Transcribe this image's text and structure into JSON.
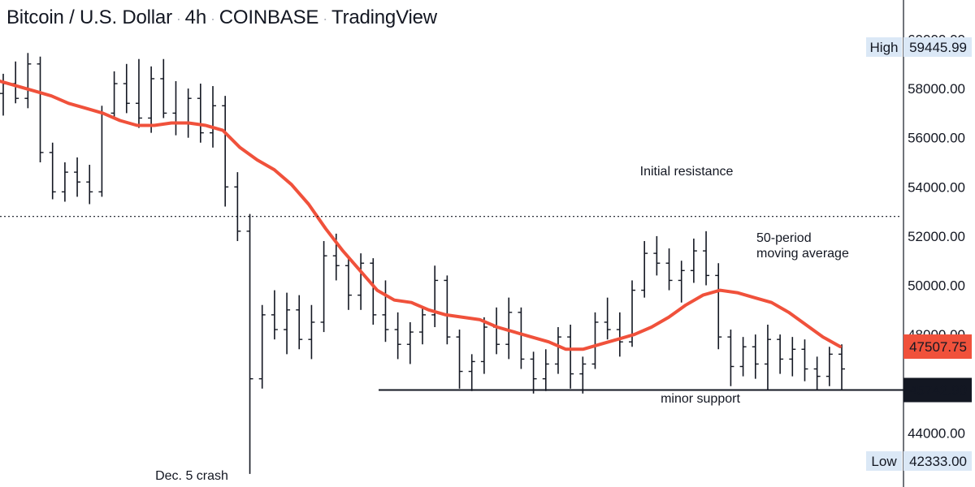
{
  "header": {
    "symbol": "Bitcoin / U.S. Dollar",
    "interval": "4h",
    "exchange": "COINBASE",
    "platform": "TradingView"
  },
  "chart_data": {
    "type": "ohlc-bar",
    "title": "Bitcoin / U.S. Dollar · 4h · COINBASE · TradingView",
    "y_axis": {
      "position": "right",
      "ticks": [
        60000,
        58000,
        56000,
        54000,
        52000,
        50000,
        48000,
        46000,
        44000
      ],
      "tick_labels": [
        "60000.00",
        "58000.00",
        "56000.00",
        "54000.00",
        "52000.00",
        "50000.00",
        "48000.00",
        "46000.00",
        "44000.00"
      ],
      "range": [
        41800,
        61600
      ]
    },
    "price_labels": {
      "high": {
        "label": "High",
        "value": "59445.99"
      },
      "low": {
        "label": "Low",
        "value": "42333.00"
      },
      "moving_average": {
        "value": "47507.75",
        "color": "#f0513b"
      },
      "last_price": {
        "value": "45742.90",
        "color": "#131722"
      }
    },
    "levels": [
      {
        "name": "Initial resistance",
        "price": 52800,
        "style": "dotted"
      },
      {
        "name": "minor support",
        "price": 45742.9,
        "style": "solid"
      }
    ],
    "annotations": {
      "resistance": "Initial resistance",
      "support": "minor support",
      "ma_line1": "50-period",
      "ma_line2": "moving average",
      "crash": "Dec. 5 crash"
    },
    "moving_average_series": {
      "name": "50-period moving average",
      "color": "#f0513b",
      "values": [
        58300,
        58100,
        57900,
        57700,
        57400,
        57200,
        57000,
        56700,
        56500,
        56500,
        56600,
        56600,
        56500,
        56300,
        55600,
        55100,
        54700,
        54100,
        53300,
        52300,
        51400,
        50600,
        49800,
        49400,
        49300,
        49000,
        48800,
        48700,
        48600,
        48300,
        48100,
        47900,
        47700,
        47400,
        47400,
        47600,
        47800,
        48000,
        48300,
        48700,
        49200,
        49600,
        49800,
        49700,
        49500,
        49300,
        48900,
        48400,
        47900,
        47507.75
      ]
    },
    "ohlc_series": [
      [
        57800,
        58600,
        56900,
        58200
      ],
      [
        58200,
        59100,
        57400,
        57600
      ],
      [
        57600,
        59446,
        57200,
        59000
      ],
      [
        59000,
        59300,
        55000,
        55400
      ],
      [
        55400,
        55800,
        53500,
        53800
      ],
      [
        53800,
        55000,
        53400,
        54600
      ],
      [
        54600,
        55200,
        53600,
        54200
      ],
      [
        54200,
        54900,
        53300,
        53800
      ],
      [
        53800,
        57300,
        53600,
        57000
      ],
      [
        57000,
        58700,
        56800,
        58200
      ],
      [
        58200,
        59000,
        57000,
        57400
      ],
      [
        57400,
        59200,
        56400,
        56800
      ],
      [
        56800,
        58900,
        56200,
        58400
      ],
      [
        58400,
        59200,
        56800,
        57000
      ],
      [
        57000,
        58300,
        56100,
        56600
      ],
      [
        56600,
        58000,
        56000,
        57600
      ],
      [
        57600,
        58200,
        55800,
        56200
      ],
      [
        56200,
        58100,
        55600,
        57300
      ],
      [
        57300,
        57700,
        53200,
        54000
      ],
      [
        54000,
        54600,
        51800,
        52200
      ],
      [
        52200,
        52900,
        42333,
        46200
      ],
      [
        46200,
        49200,
        45800,
        48800
      ],
      [
        48800,
        49800,
        47800,
        48200
      ],
      [
        48200,
        49700,
        47200,
        49000
      ],
      [
        49000,
        49600,
        47400,
        47800
      ],
      [
        47800,
        49200,
        47000,
        48500
      ],
      [
        48500,
        51800,
        48100,
        51200
      ],
      [
        51200,
        52100,
        50200,
        50800
      ],
      [
        50800,
        51200,
        49000,
        49600
      ],
      [
        49600,
        51300,
        49000,
        50900
      ],
      [
        50900,
        51100,
        48400,
        48800
      ],
      [
        48800,
        50200,
        47700,
        48200
      ],
      [
        48200,
        48900,
        47000,
        47600
      ],
      [
        47600,
        48500,
        46800,
        48100
      ],
      [
        48100,
        49100,
        47600,
        48800
      ],
      [
        48800,
        50800,
        48300,
        50200
      ],
      [
        50200,
        50400,
        47600,
        47900
      ],
      [
        47900,
        48200,
        45800,
        46500
      ],
      [
        46500,
        47200,
        45700,
        46900
      ],
      [
        46900,
        48700,
        46400,
        48300
      ],
      [
        48300,
        49100,
        47200,
        47600
      ],
      [
        47600,
        49500,
        47000,
        48900
      ],
      [
        48900,
        49100,
        46600,
        47000
      ],
      [
        47000,
        47300,
        45600,
        46200
      ],
      [
        46200,
        47400,
        45700,
        46800
      ],
      [
        46800,
        48300,
        46400,
        47900
      ],
      [
        47900,
        48400,
        45800,
        46400
      ],
      [
        46400,
        47100,
        45600,
        46800
      ],
      [
        46800,
        48900,
        46600,
        48500
      ],
      [
        48500,
        49500,
        47800,
        48200
      ],
      [
        48200,
        48900,
        47100,
        47700
      ],
      [
        47700,
        50200,
        47500,
        49800
      ],
      [
        49800,
        51800,
        49500,
        51300
      ],
      [
        51300,
        52000,
        50400,
        50900
      ],
      [
        50900,
        51500,
        49800,
        50200
      ],
      [
        50200,
        51000,
        49300,
        50600
      ],
      [
        50600,
        51900,
        50100,
        51400
      ],
      [
        51400,
        52200,
        50000,
        50400
      ],
      [
        50400,
        50900,
        47400,
        47900
      ],
      [
        47900,
        48200,
        45900,
        46700
      ],
      [
        46700,
        47900,
        46300,
        47500
      ],
      [
        47500,
        48000,
        46200,
        46800
      ],
      [
        46800,
        48400,
        45742,
        47800
      ],
      [
        47800,
        48000,
        46400,
        47000
      ],
      [
        47000,
        47900,
        46300,
        47400
      ],
      [
        47400,
        47800,
        46100,
        46600
      ],
      [
        46600,
        47100,
        45742,
        46300
      ],
      [
        46300,
        47500,
        45900,
        47200
      ],
      [
        47200,
        47600,
        45742,
        46600
      ]
    ]
  }
}
